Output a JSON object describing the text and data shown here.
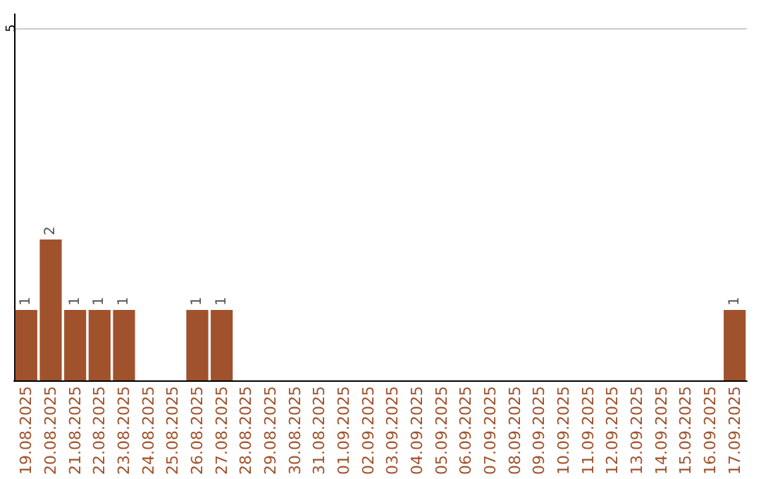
{
  "chart_data": {
    "type": "bar",
    "categories": [
      "19.08.2025",
      "20.08.2025",
      "21.08.2025",
      "22.08.2025",
      "23.08.2025",
      "24.08.2025",
      "25.08.2025",
      "26.08.2025",
      "27.08.2025",
      "28.08.2025",
      "29.08.2025",
      "30.08.2025",
      "31.08.2025",
      "01.09.2025",
      "02.09.2025",
      "03.09.2025",
      "04.09.2025",
      "05.09.2025",
      "06.09.2025",
      "07.09.2025",
      "08.09.2025",
      "09.09.2025",
      "10.09.2025",
      "11.09.2025",
      "12.09.2025",
      "13.09.2025",
      "14.09.2025",
      "15.09.2025",
      "16.09.2025",
      "17.09.2025"
    ],
    "values": [
      1,
      2,
      1,
      1,
      1,
      0,
      0,
      1,
      1,
      0,
      0,
      0,
      0,
      0,
      0,
      0,
      0,
      0,
      0,
      0,
      0,
      0,
      0,
      0,
      0,
      0,
      0,
      0,
      0,
      1
    ],
    "value_labels": [
      "1",
      "2",
      "1",
      "1",
      "1",
      null,
      null,
      "1",
      "1",
      null,
      null,
      null,
      null,
      null,
      null,
      null,
      null,
      null,
      null,
      null,
      null,
      null,
      null,
      null,
      null,
      null,
      null,
      null,
      null,
      "1"
    ],
    "color": "#a0522d",
    "ylim": [
      0,
      5.2
    ],
    "yticks": [
      5
    ],
    "grid": "y"
  }
}
